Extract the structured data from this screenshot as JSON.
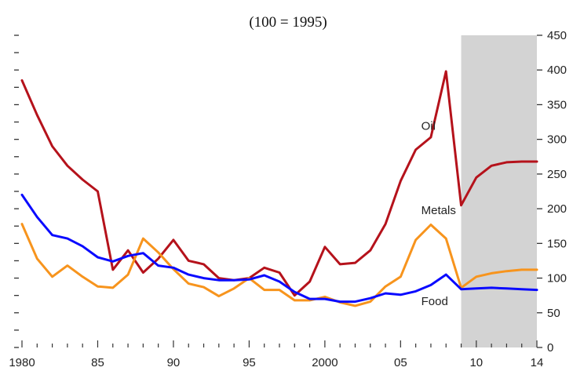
{
  "chart_data": {
    "type": "line",
    "title": "(100 = 1995)",
    "xlabel": "",
    "ylabel": "",
    "xlim": [
      1980,
      2014
    ],
    "ylim": [
      0,
      450
    ],
    "x_ticks": [
      1980,
      1985,
      1990,
      1995,
      2000,
      2005,
      2010,
      2014
    ],
    "x_tick_labels": [
      "1980",
      "85",
      "90",
      "95",
      "2000",
      "05",
      "10",
      "14"
    ],
    "y_ticks": [
      0,
      50,
      100,
      150,
      200,
      250,
      300,
      350,
      400,
      450
    ],
    "y_tick_labels": [
      "0",
      "50",
      "100",
      "150",
      "200",
      "250",
      "300",
      "350",
      "400",
      "450"
    ],
    "shaded_region": [
      2009,
      2014
    ],
    "shaded_color": "#d3d3d3",
    "grid": false,
    "x": [
      1980,
      1981,
      1982,
      1983,
      1984,
      1985,
      1986,
      1987,
      1988,
      1989,
      1990,
      1991,
      1992,
      1993,
      1994,
      1995,
      1996,
      1997,
      1998,
      1999,
      2000,
      2001,
      2002,
      2003,
      2004,
      2005,
      2006,
      2007,
      2008,
      2009,
      2010,
      2011,
      2012,
      2013,
      2014
    ],
    "series": [
      {
        "name": "Oil",
        "color": "#b5121b",
        "values": [
          385,
          335,
          290,
          262,
          242,
          225,
          112,
          140,
          108,
          128,
          155,
          125,
          120,
          100,
          97,
          100,
          115,
          108,
          75,
          95,
          145,
          120,
          122,
          140,
          178,
          240,
          285,
          303,
          398,
          205,
          245,
          262,
          267,
          268,
          268
        ]
      },
      {
        "name": "Metals",
        "color": "#f7941d",
        "values": [
          178,
          128,
          102,
          118,
          102,
          88,
          86,
          105,
          157,
          137,
          113,
          92,
          87,
          74,
          85,
          100,
          83,
          83,
          68,
          68,
          73,
          65,
          60,
          66,
          88,
          102,
          155,
          177,
          157,
          86,
          102,
          107,
          110,
          112,
          112
        ]
      },
      {
        "name": "Food",
        "color": "#0a0aff",
        "values": [
          220,
          188,
          162,
          157,
          146,
          130,
          124,
          132,
          136,
          118,
          115,
          105,
          100,
          97,
          97,
          98,
          104,
          95,
          80,
          70,
          70,
          66,
          66,
          71,
          78,
          76,
          81,
          90,
          105,
          84,
          85,
          86,
          85,
          84,
          83
        ]
      }
    ],
    "series_labels": [
      {
        "name": "Oil",
        "x": 2006,
        "y": 314
      },
      {
        "name": "Metals",
        "x": 2006,
        "y": 192
      },
      {
        "name": "Food",
        "x": 2006,
        "y": 61
      }
    ]
  }
}
